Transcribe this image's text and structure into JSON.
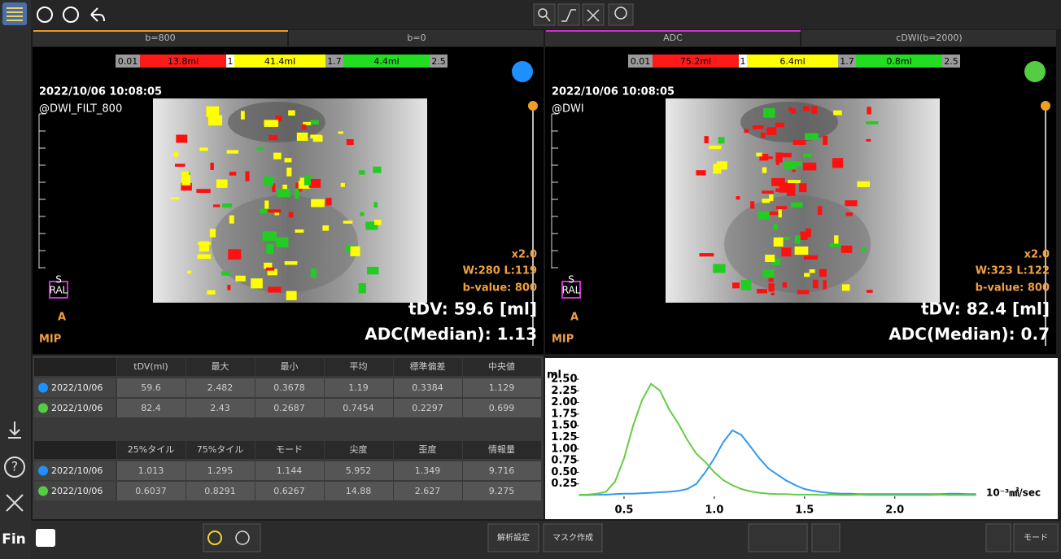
{
  "tabs": [
    "b=800",
    "b=0",
    "ADC",
    "cDWI(b=2000)"
  ],
  "viewports": [
    {
      "colorbar": [
        "0.01",
        "13.8ml",
        "1",
        "41.4ml",
        "1.7",
        "4.4ml",
        "2.5"
      ],
      "marker_color": "#1e90ff",
      "date": "2022/10/06 10:08:05",
      "source": "@DWI_FILT_800",
      "zoom": "x2.0",
      "window": "W:280 L:119",
      "bvalue": "b-value: 800",
      "tdv": "tDV: 59.6 [ml]",
      "adc": "ADC(Median): 1.13",
      "orientation": {
        "top": "S",
        "middle": "RAL",
        "bottom": "A"
      },
      "mode": "MIP"
    },
    {
      "colorbar": [
        "0.01",
        "75.2ml",
        "1",
        "6.4ml",
        "1.7",
        "0.8ml",
        "2.5"
      ],
      "marker_color": "#55cc44",
      "date": "2022/10/06 10:08:05",
      "source": "@DWI",
      "zoom": "x2.0",
      "window": "W:323 L:122",
      "bvalue": "b-value: 800",
      "tdv": "tDV: 82.4 [ml]",
      "adc": "ADC(Median): 0.7",
      "orientation": {
        "top": "S",
        "middle": "RAL",
        "bottom": "A"
      },
      "mode": "MIP"
    }
  ],
  "tables": [
    {
      "header": [
        "tDV(ml)",
        "最大",
        "最小",
        "平均",
        "標準偏差",
        "中央値"
      ],
      "rows": [
        {
          "date": "2022/10/06",
          "cells": [
            "59.6",
            "2.482",
            "0.3678",
            "1.19",
            "0.3384",
            "1.129"
          ]
        },
        {
          "date": "2022/10/06",
          "cells": [
            "82.4",
            "2.43",
            "0.2687",
            "0.7454",
            "0.2297",
            "0.699"
          ]
        }
      ]
    },
    {
      "header": [
        "25%タイル",
        "75%タイル",
        "モード",
        "尖度",
        "歪度",
        "情報量"
      ],
      "rows": [
        {
          "date": "2022/10/06",
          "cells": [
            "1.013",
            "1.295",
            "1.144",
            "5.952",
            "1.349",
            "9.716"
          ]
        },
        {
          "date": "2022/10/06",
          "cells": [
            "0.6037",
            "0.8291",
            "0.6267",
            "14.88",
            "2.627",
            "9.275"
          ]
        }
      ]
    }
  ],
  "chart_data": {
    "type": "line",
    "y_label": "ml",
    "x_label": "10⁻³㎟/sec",
    "x": [
      0.25,
      0.3,
      0.35,
      0.4,
      0.45,
      0.5,
      0.55,
      0.6,
      0.65,
      0.7,
      0.75,
      0.8,
      0.85,
      0.9,
      0.95,
      1.0,
      1.05,
      1.1,
      1.15,
      1.2,
      1.25,
      1.3,
      1.35,
      1.4,
      1.45,
      1.5,
      1.55,
      1.6,
      1.65,
      1.7,
      1.75,
      1.8,
      1.85,
      1.9,
      1.95,
      2.0,
      2.05,
      2.1,
      2.15,
      2.2,
      2.25,
      2.3,
      2.35,
      2.4,
      2.45
    ],
    "series": [
      {
        "color": "#3399ee",
        "values": [
          0.01,
          0.01,
          0.02,
          0.02,
          0.03,
          0.04,
          0.04,
          0.05,
          0.06,
          0.07,
          0.08,
          0.1,
          0.14,
          0.25,
          0.5,
          0.8,
          1.15,
          1.4,
          1.3,
          1.05,
          0.8,
          0.58,
          0.45,
          0.32,
          0.22,
          0.14,
          0.1,
          0.07,
          0.05,
          0.04,
          0.04,
          0.03,
          0.03,
          0.03,
          0.03,
          0.03,
          0.03,
          0.03,
          0.03,
          0.03,
          0.03,
          0.04,
          0.04,
          0.03,
          0.03
        ]
      },
      {
        "color": "#66cc44",
        "values": [
          0.02,
          0.02,
          0.04,
          0.08,
          0.3,
          0.8,
          1.5,
          2.05,
          2.4,
          2.25,
          1.85,
          1.55,
          1.2,
          0.9,
          0.72,
          0.5,
          0.33,
          0.22,
          0.14,
          0.09,
          0.06,
          0.04,
          0.03,
          0.03,
          0.02,
          0.02,
          0.02,
          0.01,
          0.02,
          0.01,
          0.01,
          0.02,
          0.01,
          0.01,
          0.01,
          0.01,
          0.01,
          0.01,
          0.01,
          0.01,
          0.02,
          0.01,
          0.01,
          0.01,
          0.01
        ]
      }
    ],
    "xlim": [
      0.25,
      2.47
    ],
    "ylim": [
      0,
      2.5
    ],
    "xticks": [
      0.5,
      {
        "value": 1,
        "label": "1.0"
      },
      1.5,
      {
        "value": 2,
        "label": "2.0"
      }
    ],
    "yticks": [
      0.25,
      {
        "value": 0.5,
        "label": "0.50"
      },
      0.75,
      {
        "value": 1,
        "label": "1.00"
      },
      1.25,
      {
        "value": 1.5,
        "label": "1.50"
      },
      1.75,
      {
        "value": 2,
        "label": "2.00"
      },
      2.25,
      {
        "value": 2.5,
        "label": "2.50"
      }
    ],
    "grid": false
  },
  "bottom_bar": {
    "analysis": "解析設定",
    "mask": "マスク作成",
    "mode": "モード"
  },
  "sidebar": {
    "exit": "Fin"
  }
}
